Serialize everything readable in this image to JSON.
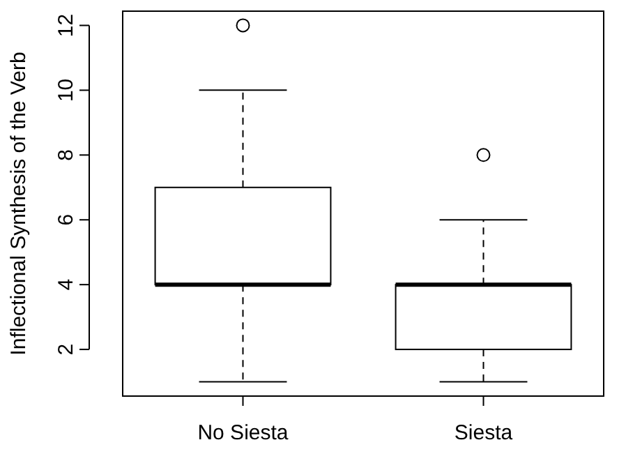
{
  "chart_data": {
    "type": "box",
    "ylabel": "Inflectional Synthesis of the Verb",
    "categories": [
      "No Siesta",
      "Siesta"
    ],
    "boxes": [
      {
        "low": 1,
        "q1": 4,
        "median": 4,
        "q3": 7,
        "high": 10,
        "outliers": [
          12
        ]
      },
      {
        "low": 1,
        "q1": 2,
        "median": 4,
        "q3": 4,
        "high": 6,
        "outliers": [
          8
        ]
      }
    ],
    "ylim": [
      0.56,
      12.44
    ],
    "yticks": [
      2,
      4,
      6,
      8,
      10,
      12
    ],
    "marker": "circle"
  }
}
